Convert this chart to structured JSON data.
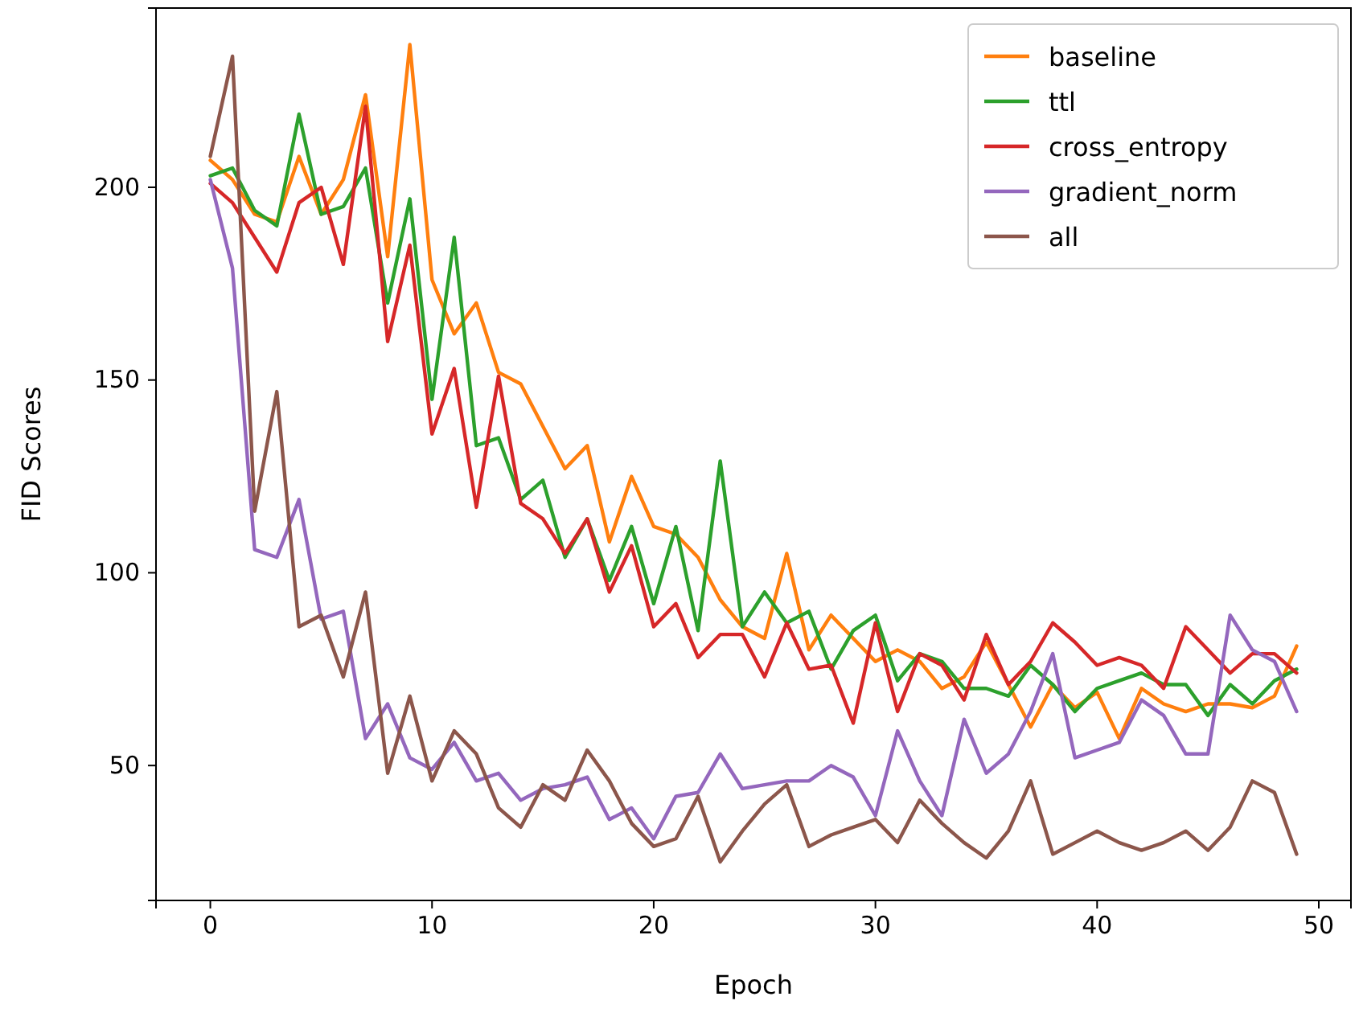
{
  "chart_data": {
    "type": "line",
    "xlabel": "Epoch",
    "ylabel": "FID Scores",
    "x": [
      0,
      1,
      2,
      3,
      4,
      5,
      6,
      7,
      8,
      9,
      10,
      11,
      12,
      13,
      14,
      15,
      16,
      17,
      18,
      19,
      20,
      21,
      22,
      23,
      24,
      25,
      26,
      27,
      28,
      29,
      30,
      31,
      32,
      33,
      34,
      35,
      36,
      37,
      38,
      39,
      40,
      41,
      42,
      43,
      44,
      45,
      46,
      47,
      48,
      49
    ],
    "xlim": [
      -2.45,
      51.45
    ],
    "xticks": [
      0,
      10,
      20,
      30,
      40,
      50
    ],
    "ylim": [
      15,
      246.5
    ],
    "yticks": [
      50,
      100,
      150,
      200
    ],
    "grid": false,
    "legend": "top right",
    "marker": "none",
    "line_style": "solid",
    "series": [
      {
        "name": "baseline",
        "color": "#ff7f0e",
        "values": [
          207,
          202,
          193,
          191,
          208,
          193,
          202,
          224,
          182,
          237,
          176,
          162,
          170,
          152,
          149,
          138,
          127,
          133,
          108,
          125,
          112,
          110,
          104,
          93,
          86,
          83,
          105,
          80,
          89,
          83,
          77,
          80,
          77,
          70,
          73,
          82,
          71,
          60,
          71,
          65,
          69,
          57,
          70,
          66,
          64,
          66,
          66,
          65,
          68,
          81
        ]
      },
      {
        "name": "ttl",
        "color": "#2ca02c",
        "values": [
          203,
          205,
          194,
          190,
          219,
          193,
          195,
          205,
          170,
          197,
          145,
          187,
          133,
          135,
          119,
          124,
          104,
          114,
          98,
          112,
          92,
          112,
          85,
          129,
          86,
          95,
          87,
          90,
          75,
          85,
          89,
          72,
          79,
          77,
          70,
          70,
          68,
          76,
          71,
          64,
          70,
          72,
          74,
          71,
          71,
          63,
          71,
          66,
          72,
          75
        ]
      },
      {
        "name": "cross_entropy",
        "color": "#d62728",
        "values": [
          201,
          196,
          187,
          178,
          196,
          200,
          180,
          221,
          160,
          185,
          136,
          153,
          117,
          151,
          118,
          114,
          105,
          114,
          95,
          107,
          86,
          92,
          78,
          84,
          84,
          73,
          87,
          75,
          76,
          61,
          87,
          64,
          79,
          76,
          67,
          84,
          71,
          77,
          87,
          82,
          76,
          78,
          76,
          70,
          86,
          80,
          74,
          79,
          79,
          74
        ]
      },
      {
        "name": "gradient_norm",
        "color": "#9467bd",
        "values": [
          202,
          179,
          106,
          104,
          119,
          88,
          90,
          57,
          66,
          52,
          49,
          56,
          46,
          48,
          41,
          44,
          45,
          47,
          36,
          39,
          31,
          42,
          43,
          53,
          44,
          45,
          46,
          46,
          50,
          47,
          37,
          59,
          46,
          37,
          62,
          48,
          53,
          64,
          79,
          52,
          54,
          56,
          67,
          63,
          53,
          53,
          89,
          80,
          77,
          64
        ]
      },
      {
        "name": "all",
        "color": "#8c564b",
        "values": [
          208,
          234,
          116,
          147,
          86,
          89,
          73,
          95,
          48,
          68,
          46,
          59,
          53,
          39,
          34,
          45,
          41,
          54,
          46,
          35,
          29,
          31,
          42,
          25,
          33,
          40,
          45,
          29,
          32,
          34,
          36,
          30,
          41,
          35,
          30,
          26,
          33,
          46,
          27,
          30,
          33,
          30,
          28,
          30,
          33,
          28,
          34,
          46,
          43,
          27
        ]
      }
    ]
  }
}
